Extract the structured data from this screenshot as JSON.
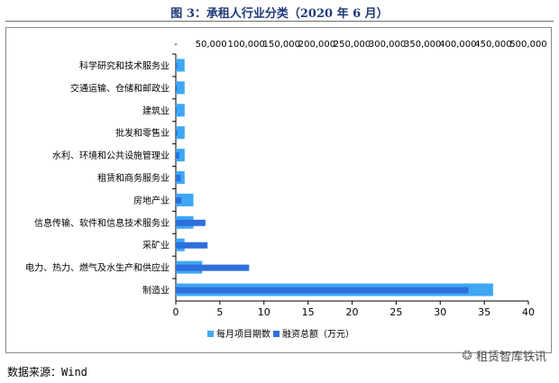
{
  "title": "图 3：承租人行业分类（2020 年 6 月）",
  "source": "数据来源：Wind",
  "watermark": "租赁智库铁讯",
  "colors": {
    "series_count": "#3ea7f4",
    "series_amount": "#2e6fdd",
    "axis": "#000000",
    "frame": "#8a8a8a"
  },
  "chart_data": {
    "type": "bar",
    "orientation": "horizontal",
    "categories": [
      "科学研究和技术服务业",
      "交通运输、仓储和邮政业",
      "建筑业",
      "批发和零售业",
      "水利、环境和公共设施管理业",
      "租赁和商务服务业",
      "房地产业",
      "信息传输、软件和信息技术服务业",
      "采矿业",
      "电力、热力、燃气及水生产和供应业",
      "制造业"
    ],
    "series": [
      {
        "name": "每月项目期数",
        "axis": "bottom",
        "values": [
          1,
          1,
          1,
          1,
          1,
          1,
          2,
          2,
          1,
          3,
          36
        ]
      },
      {
        "name": "融资总额（万元）",
        "axis": "top",
        "values": [
          1500,
          1500,
          1000,
          2000,
          5000,
          7000,
          8000,
          42000,
          45000,
          104000,
          415000
        ]
      }
    ],
    "xlim_bottom": [
      0,
      40
    ],
    "xticks_bottom": [
      "0",
      "5",
      "10",
      "15",
      "20",
      "25",
      "30",
      "35",
      "40"
    ],
    "xlim_top": [
      0,
      450000
    ],
    "xticks_top": [
      "-",
      "50,000",
      "100,000",
      "150,000",
      "200,000",
      "250,000",
      "300,000",
      "350,000",
      "400,000",
      "450,000",
      "500,000"
    ],
    "grid": false,
    "legend_position": "bottom"
  }
}
